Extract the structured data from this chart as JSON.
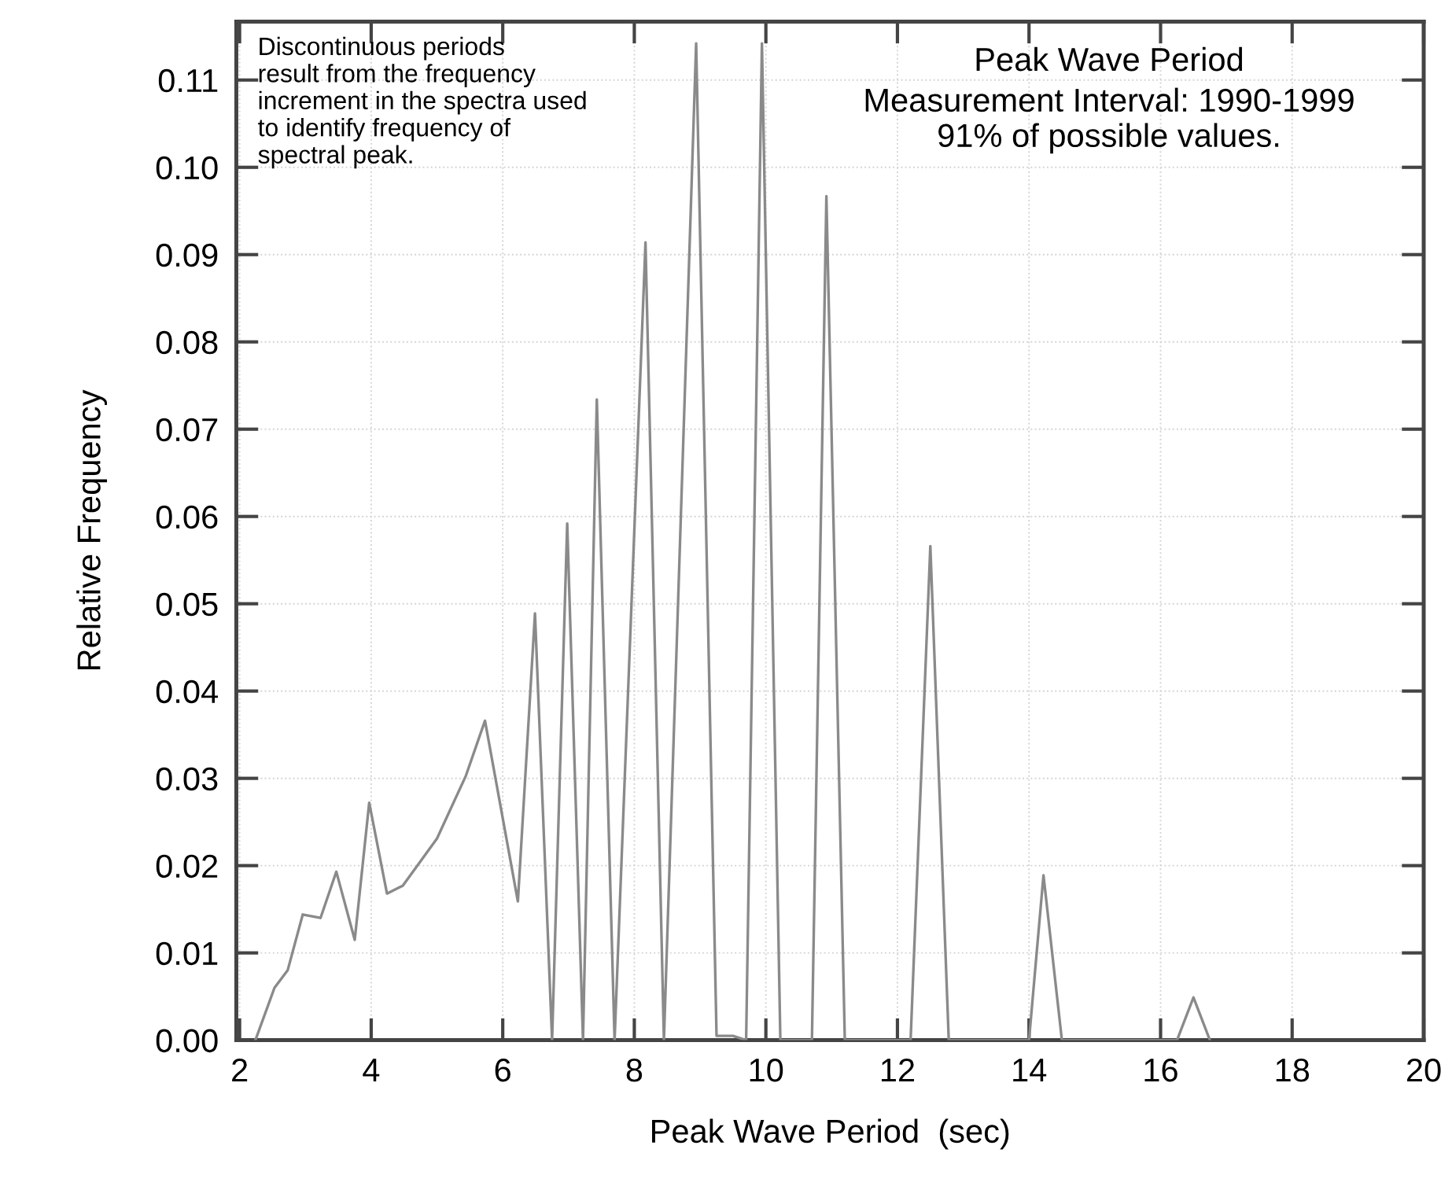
{
  "chart_data": {
    "type": "line",
    "title": "Peak Wave Period",
    "xlabel": "Peak Wave Period  (sec)",
    "ylabel": "Relative Frequency",
    "annotations": [
      "Measurement Interval: 1990-1999\n91% of possible values.",
      "Discontinuous periods\nresult from the frequency\nincrement in the spectra used\nto identify frequency of\nspectral peak."
    ],
    "series": [
      {
        "color": "#8a8a8a",
        "x": [
          2.24,
          2.53,
          2.73,
          2.96,
          3.23,
          3.47,
          3.75,
          3.97,
          4.24,
          4.48,
          5.0,
          5.44,
          5.73,
          6.23,
          6.49,
          6.75,
          6.98,
          7.22,
          7.43,
          7.7,
          8.17,
          8.45,
          8.94,
          9.25,
          9.5,
          9.7,
          9.94,
          10.22,
          10.7,
          10.92,
          11.2,
          12.2,
          12.5,
          12.78,
          14.0,
          14.22,
          14.5,
          16.25,
          16.5,
          16.75
        ],
        "values": [
          0,
          0.006,
          0.008,
          0.0144,
          0.014,
          0.0193,
          0.0115,
          0.0272,
          0.0168,
          0.0177,
          0.0231,
          0.0303,
          0.0366,
          0.0159,
          0.0489,
          0,
          0.0592,
          0,
          0.0734,
          0,
          0.0914,
          0,
          0.1142,
          0.0005,
          0.0005,
          0,
          0.1142,
          0,
          0,
          0.0967,
          0,
          0,
          0.0566,
          0,
          0,
          0.0189,
          0,
          0,
          0.0049,
          0
        ]
      }
    ],
    "xlim": [
      1.95,
      20
    ],
    "ylim": [
      0,
      0.1167
    ],
    "xticks": [
      2,
      4,
      6,
      8,
      10,
      12,
      14,
      16,
      18,
      20
    ],
    "yticks": [
      {
        "value": 0,
        "label": "0.00"
      },
      {
        "value": 0.01,
        "label": "0.01"
      },
      {
        "value": 0.02,
        "label": "0.02"
      },
      {
        "value": 0.03,
        "label": "0.03"
      },
      {
        "value": 0.04,
        "label": "0.04"
      },
      {
        "value": 0.05,
        "label": "0.05"
      },
      {
        "value": 0.06,
        "label": "0.06"
      },
      {
        "value": 0.07,
        "label": "0.07"
      },
      {
        "value": 0.08,
        "label": "0.08"
      },
      {
        "value": 0.09,
        "label": "0.09"
      },
      {
        "value": 0.1,
        "label": "0.10"
      },
      {
        "value": 0.11,
        "label": "0.11"
      }
    ],
    "grid": true,
    "marker": "none",
    "line_style": "solid"
  }
}
